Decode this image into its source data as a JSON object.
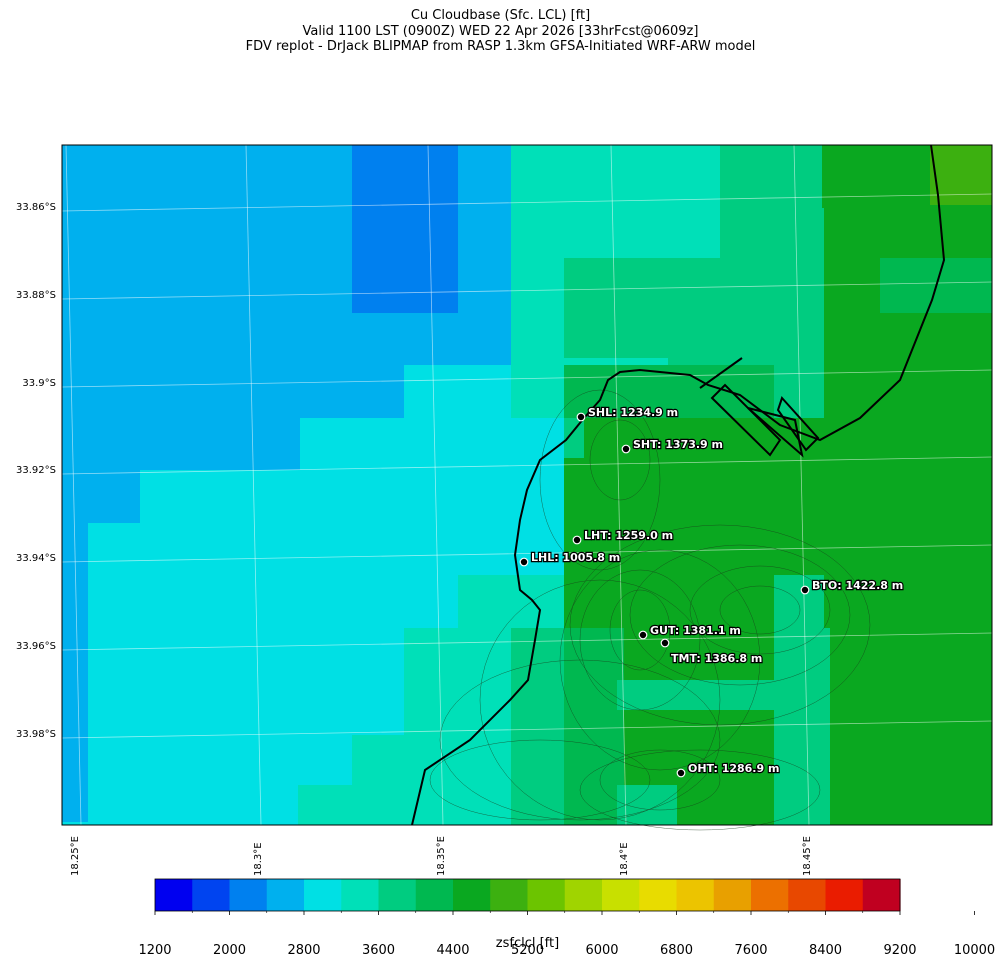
{
  "header": {
    "line1": "Cu Cloudbase (Sfc. LCL) [ft]",
    "line2": "Valid 1100 LST (0900Z) WED 22 Apr 2026 [33hrFcst@0609z]",
    "line3": "FDV replot - DrJack BLIPMAP from RASP 1.3km GFSA-Initiated WRF-ARW model"
  },
  "axes": {
    "lat_labels": [
      "33.86°S",
      "33.88°S",
      "33.9°S",
      "33.92°S",
      "33.94°S",
      "33.96°S",
      "33.98°S"
    ],
    "lon_labels": [
      "18.25°E",
      "18.3°E",
      "18.35°E",
      "18.4°E",
      "18.45°E"
    ]
  },
  "stations": [
    {
      "label": "SHL: 1234.9 m"
    },
    {
      "label": "SHT: 1373.9 m"
    },
    {
      "label": "LHT: 1259.0 m"
    },
    {
      "label": "LHL: 1005.8 m"
    },
    {
      "label": "BTO: 1422.8 m"
    },
    {
      "label": "GUT: 1381.1 m"
    },
    {
      "label": "TMT: 1386.8 m"
    },
    {
      "label": "OHT: 1286.9 m"
    }
  ],
  "colorbar": {
    "title": "zsfclcl [ft]",
    "ticks": [
      "1200",
      "2000",
      "2800",
      "3600",
      "4400",
      "5200",
      "6000",
      "6800",
      "7600",
      "8400",
      "9200",
      "10000"
    ],
    "colors": [
      "#0000f0",
      "#0044f0",
      "#0080ef",
      "#00b0ee",
      "#00e0e4",
      "#00e0b8",
      "#00cc80",
      "#00b850",
      "#0aa820",
      "#3cb010",
      "#6cc400",
      "#a0d400",
      "#c8e000",
      "#e8dc00",
      "#ecc400",
      "#e8a000",
      "#ec7000",
      "#e84800",
      "#ea1c00",
      "#c00020"
    ]
  },
  "map_colors": {
    "c2400": "#00b0ee",
    "c2000": "#0080ef",
    "c2800": "#00e0e4",
    "c3200": "#00e0b8",
    "c3600": "#00cc80",
    "c4000": "#00b850",
    "c4400": "#0aa820",
    "c4800": "#3cb010"
  }
}
